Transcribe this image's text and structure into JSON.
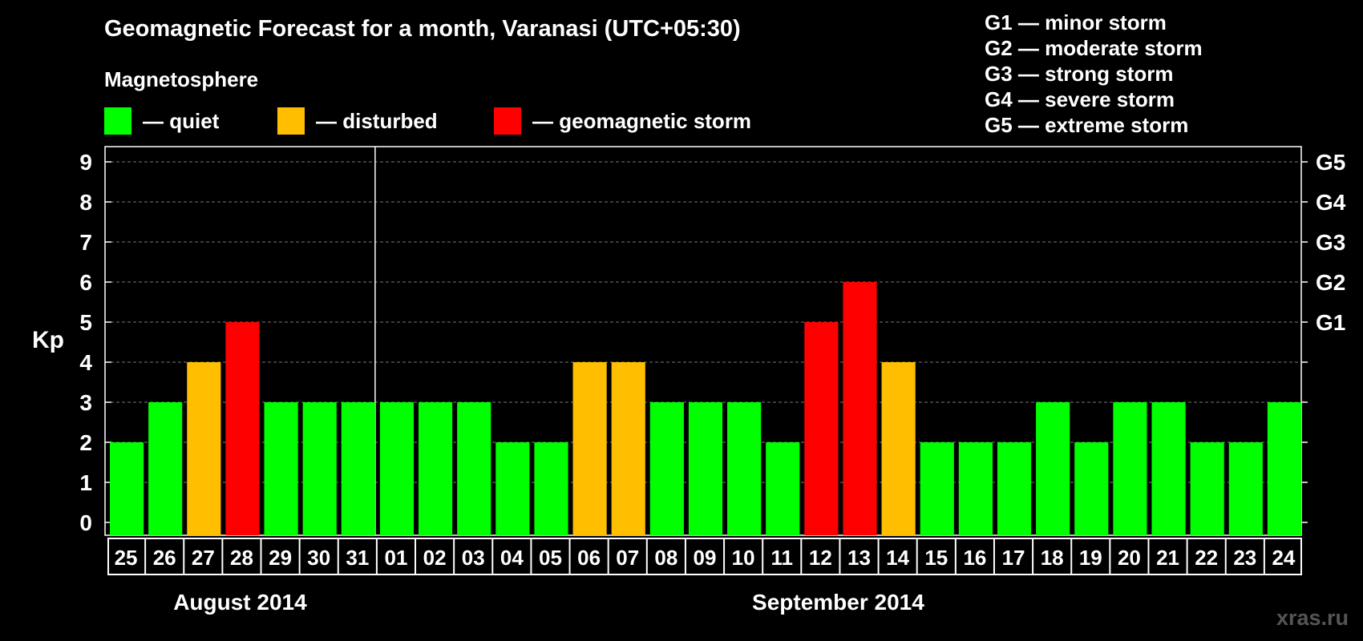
{
  "chart_data": {
    "type": "bar",
    "title": "Geomagnetic Forecast for a month, Varanasi (UTC+05:30)",
    "subtitle": "Magnetosphere",
    "ylabel": "Kp",
    "ylim": [
      0,
      9
    ],
    "yticks": [
      "0",
      "1",
      "2",
      "3",
      "4",
      "5",
      "6",
      "7",
      "8",
      "9"
    ],
    "right_ticks": [
      {
        "value": 5,
        "label": "G1"
      },
      {
        "value": 6,
        "label": "G2"
      },
      {
        "value": 7,
        "label": "G3"
      },
      {
        "value": 8,
        "label": "G4"
      },
      {
        "value": 9,
        "label": "G5"
      }
    ],
    "grid": true,
    "categories": [
      "25",
      "26",
      "27",
      "28",
      "29",
      "30",
      "31",
      "01",
      "02",
      "03",
      "04",
      "05",
      "06",
      "07",
      "08",
      "09",
      "10",
      "11",
      "12",
      "13",
      "14",
      "15",
      "16",
      "17",
      "18",
      "19",
      "20",
      "21",
      "22",
      "23",
      "24"
    ],
    "values": [
      2,
      3,
      4,
      5,
      3,
      3,
      3,
      3,
      3,
      3,
      2,
      2,
      4,
      4,
      3,
      3,
      3,
      2,
      5,
      6,
      4,
      2,
      2,
      2,
      3,
      2,
      3,
      3,
      2,
      2,
      3
    ],
    "status": [
      "quiet",
      "quiet",
      "disturbed",
      "storm",
      "quiet",
      "quiet",
      "quiet",
      "quiet",
      "quiet",
      "quiet",
      "quiet",
      "quiet",
      "disturbed",
      "disturbed",
      "quiet",
      "quiet",
      "quiet",
      "quiet",
      "storm",
      "storm",
      "disturbed",
      "quiet",
      "quiet",
      "quiet",
      "quiet",
      "quiet",
      "quiet",
      "quiet",
      "quiet",
      "quiet",
      "quiet"
    ],
    "months": [
      {
        "label": "August 2014",
        "start": 0,
        "end": 6
      },
      {
        "label": "September 2014",
        "start": 7,
        "end": 30
      }
    ],
    "legend": [
      {
        "key": "quiet",
        "label": "— quiet",
        "color": "#00ff00"
      },
      {
        "key": "disturbed",
        "label": "— disturbed",
        "color": "#ffbf00"
      },
      {
        "key": "storm",
        "label": "— geomagnetic storm",
        "color": "#ff0000"
      }
    ],
    "g_scale": [
      "G1 — minor storm",
      "G2 — moderate storm",
      "G3 — strong storm",
      "G4 — severe storm",
      "G5 — extreme storm"
    ]
  },
  "watermark": "xras.ru"
}
